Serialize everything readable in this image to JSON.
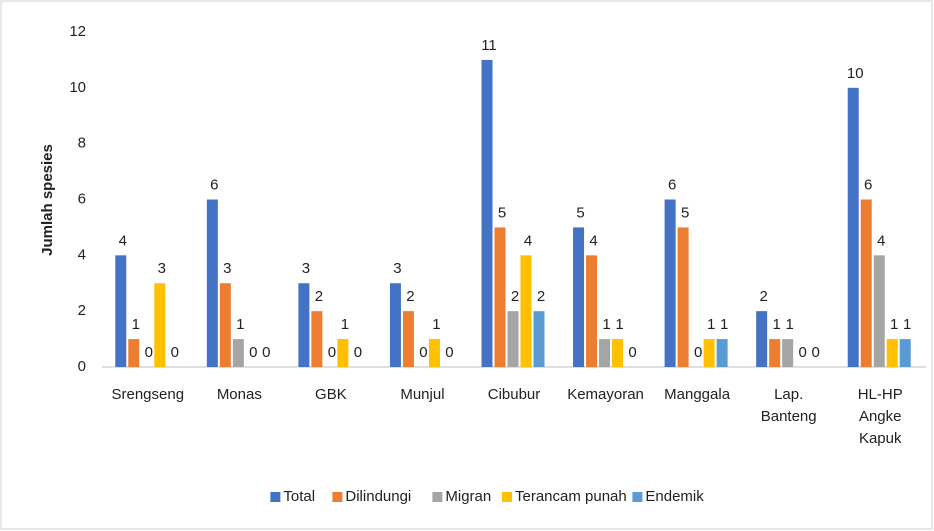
{
  "chart_data": {
    "type": "bar",
    "y_axis_label": "Jumlah spesies",
    "categories": [
      "Srengseng",
      "Monas",
      "GBK",
      "Munjul",
      "Cibubur",
      "Kemayoran",
      "Manggala",
      "Lap. Banteng",
      "HL-HP Angke Kapuk"
    ],
    "series": [
      {
        "name": "Total",
        "color": "#4472c4",
        "values": [
          4,
          6,
          3,
          3,
          11,
          5,
          6,
          2,
          10
        ]
      },
      {
        "name": "Dilindungi",
        "color": "#ed7d31",
        "values": [
          1,
          3,
          2,
          2,
          5,
          4,
          5,
          1,
          6
        ]
      },
      {
        "name": "Migran",
        "color": "#a5a5a5",
        "values": [
          0,
          1,
          0,
          0,
          2,
          1,
          0,
          1,
          4
        ]
      },
      {
        "name": "Terancam punah",
        "color": "#ffc000",
        "values": [
          3,
          0,
          1,
          1,
          4,
          1,
          1,
          0,
          1
        ]
      },
      {
        "name": "Endemik",
        "color": "#5b9bd5",
        "values": [
          0,
          0,
          0,
          0,
          2,
          0,
          1,
          0,
          1
        ]
      }
    ],
    "ylim": [
      0,
      12
    ],
    "yticks": [
      0,
      2,
      4,
      6,
      8,
      10,
      12
    ],
    "grid": false,
    "legend": "bottom"
  }
}
